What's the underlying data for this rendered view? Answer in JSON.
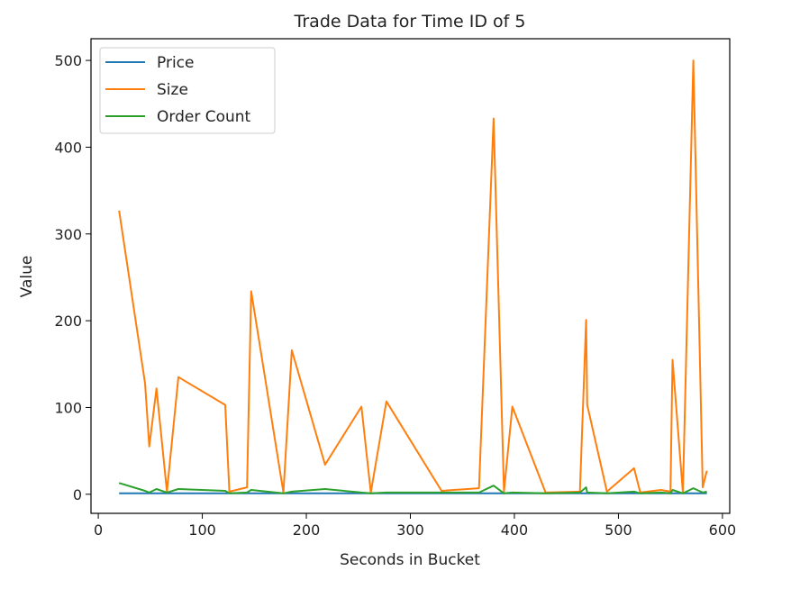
{
  "chart_data": {
    "type": "line",
    "title": "Trade Data for Time ID of 5",
    "xlabel": "Seconds in Bucket",
    "ylabel": "Value",
    "xlim": [
      -7,
      607
    ],
    "ylim": [
      -22,
      525
    ],
    "xticks": [
      0,
      100,
      200,
      300,
      400,
      500,
      600
    ],
    "yticks": [
      0,
      100,
      200,
      300,
      400,
      500
    ],
    "grid": false,
    "legend_position": "upper left",
    "series": [
      {
        "name": "Price",
        "color": "#1f77b4",
        "x": [
          20,
          585
        ],
        "y": [
          1.0,
          1.0
        ]
      },
      {
        "name": "Size",
        "color": "#ff7f0e",
        "x": [
          20,
          45,
          49,
          56,
          66,
          77,
          122,
          126,
          143,
          147,
          178,
          186,
          218,
          253,
          262,
          277,
          330,
          366,
          380,
          390,
          398,
          430,
          463,
          469,
          470,
          489,
          515,
          521,
          541,
          550,
          552,
          562,
          572,
          581,
          585
        ],
        "y": [
          327,
          128,
          55,
          122,
          3,
          135,
          103,
          3,
          8,
          234,
          2,
          166,
          34,
          101,
          2,
          107,
          4,
          7,
          433,
          3,
          101,
          2,
          3,
          201,
          103,
          3,
          30,
          2,
          5,
          3,
          155,
          2,
          500,
          8,
          27
        ]
      },
      {
        "name": "Order Count",
        "color": "#2ca02c",
        "x": [
          20,
          45,
          49,
          56,
          66,
          77,
          122,
          126,
          143,
          147,
          178,
          186,
          218,
          253,
          262,
          277,
          330,
          366,
          380,
          390,
          398,
          430,
          463,
          469,
          470,
          489,
          515,
          521,
          541,
          550,
          552,
          562,
          572,
          581,
          585
        ],
        "y": [
          13,
          4,
          2,
          6,
          2,
          6,
          4,
          1,
          2,
          5,
          1,
          3,
          6,
          2,
          1,
          2,
          2,
          2,
          10,
          1,
          2,
          1,
          2,
          8,
          2,
          1,
          3,
          1,
          2,
          1,
          5,
          1,
          7,
          2,
          3
        ]
      }
    ]
  }
}
